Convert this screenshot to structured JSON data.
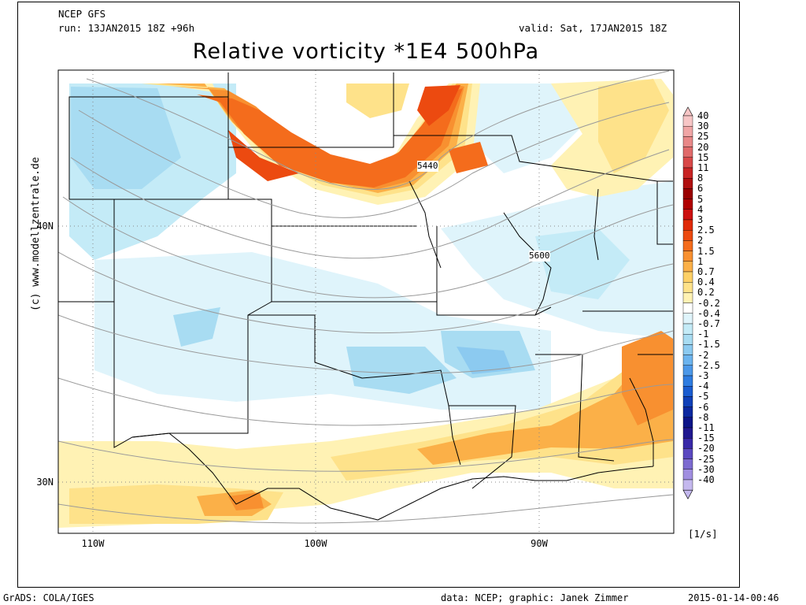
{
  "header": {
    "model": "NCEP GFS",
    "run": "run: 13JAN2015 18Z +96h",
    "valid": "valid: Sat, 17JAN2015 18Z",
    "title": "Relative vorticity *1E4 500hPa"
  },
  "axes": {
    "lat_labels": [
      "40N",
      "30N"
    ],
    "lon_labels": [
      "110W",
      "100W",
      "90W"
    ]
  },
  "contour_labels": [
    "5440",
    "5600"
  ],
  "colorbar": {
    "unit": "[1/s]",
    "levels": [
      "40",
      "30",
      "25",
      "20",
      "15",
      "11",
      "8",
      "6",
      "5",
      "4",
      "3",
      "2.5",
      "2",
      "1.5",
      "1",
      "0.7",
      "0.4",
      "0.2",
      "-0.2",
      "-0.4",
      "-0.7",
      "-1",
      "-1.5",
      "-2",
      "-2.5",
      "-3",
      "-4",
      "-5",
      "-6",
      "-8",
      "-11",
      "-15",
      "-20",
      "-25",
      "-30",
      "-40"
    ],
    "colors": [
      "#f7c6c6",
      "#f0a6a6",
      "#e88888",
      "#e06a6a",
      "#d84848",
      "#c82424",
      "#b01010",
      "#9a0000",
      "#b00000",
      "#cc1010",
      "#e02a08",
      "#ec4a10",
      "#f46c1c",
      "#f89030",
      "#fbb048",
      "#fdd066",
      "#fee28a",
      "#fff2b4",
      "#ffffff",
      "#dff4fb",
      "#c4ebf7",
      "#a8dcf2",
      "#8ccaf0",
      "#6cb4ee",
      "#4c98e8",
      "#2e7ce0",
      "#1a5cd0",
      "#1040b8",
      "#0c28a0",
      "#0c1488",
      "#201890",
      "#3828a8",
      "#5a48c0",
      "#7c6ad0",
      "#a08ee0",
      "#c4b8ee"
    ]
  },
  "credit": "(c) www.modellzentrale.de",
  "footer": {
    "left": "GrADS: COLA/IGES",
    "center": "data: NCEP; graphic: Janek Zimmer",
    "right": "2015-01-14-00:46"
  }
}
